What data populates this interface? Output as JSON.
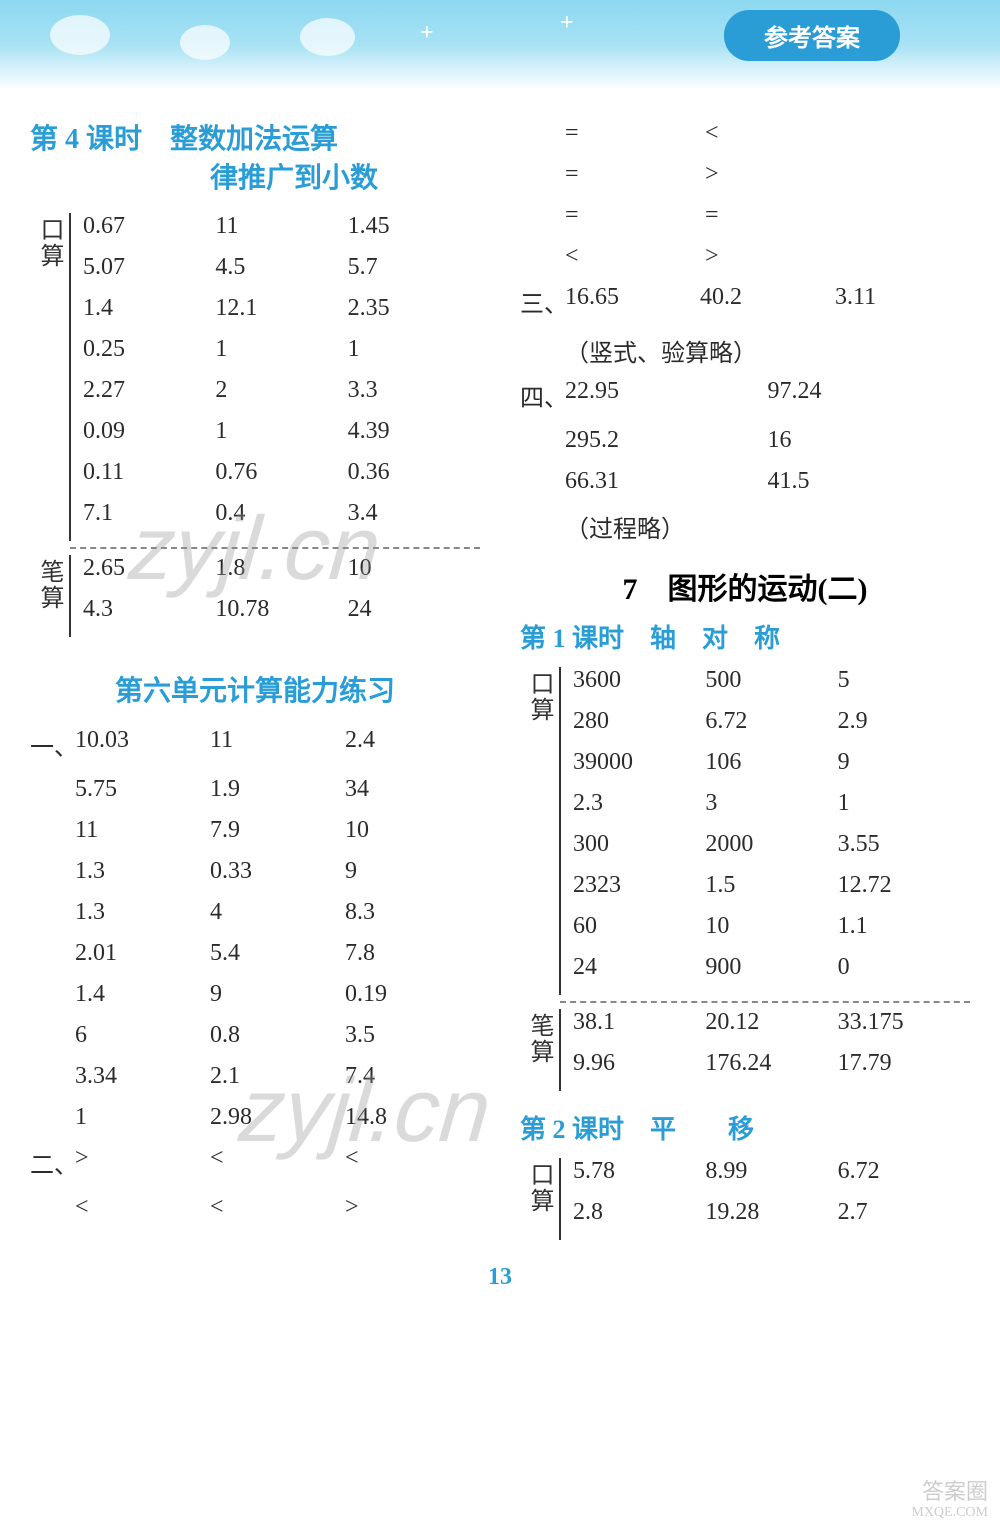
{
  "banner": {
    "badge": "参考答案"
  },
  "page_number": "13",
  "watermark_text": "zyjl.cn",
  "left": {
    "lesson4": {
      "title_line1": "第 4 课时　整数加法运算",
      "title_line2": "律推广到小数",
      "kousuan_label": "口算",
      "kousuan_rows": [
        [
          "0.67",
          "11",
          "1.45"
        ],
        [
          "5.07",
          "4.5",
          "5.7"
        ],
        [
          "1.4",
          "12.1",
          "2.35"
        ],
        [
          "0.25",
          "1",
          "1"
        ],
        [
          "2.27",
          "2",
          "3.3"
        ],
        [
          "0.09",
          "1",
          "4.39"
        ],
        [
          "0.11",
          "0.76",
          "0.36"
        ],
        [
          "7.1",
          "0.4",
          "3.4"
        ]
      ],
      "bisuan_label": "笔算",
      "bisuan_rows": [
        [
          "2.65",
          "1.8",
          "10"
        ],
        [
          "4.3",
          "10.78",
          "24"
        ]
      ]
    },
    "unit6": {
      "title": "第六单元计算能力练习",
      "sec1_label": "一、",
      "sec1_rows": [
        [
          "10.03",
          "11",
          "2.4"
        ],
        [
          "5.75",
          "1.9",
          "34"
        ],
        [
          "11",
          "7.9",
          "10"
        ],
        [
          "1.3",
          "0.33",
          "9"
        ],
        [
          "1.3",
          "4",
          "8.3"
        ],
        [
          "2.01",
          "5.4",
          "7.8"
        ],
        [
          "1.4",
          "9",
          "0.19"
        ],
        [
          "6",
          "0.8",
          "3.5"
        ],
        [
          "3.34",
          "2.1",
          "7.4"
        ],
        [
          "1",
          "2.98",
          "14.8"
        ]
      ],
      "sec2_label": "二、",
      "sec2_rows": [
        [
          ">",
          "<",
          "<"
        ],
        [
          "<",
          "<",
          ">"
        ]
      ]
    }
  },
  "right": {
    "continued_symbols": [
      [
        "=",
        "<"
      ],
      [
        "=",
        ">"
      ],
      [
        "=",
        "="
      ],
      [
        "<",
        ">"
      ]
    ],
    "sec3": {
      "label": "三、",
      "row": [
        "16.65",
        "40.2",
        "3.11"
      ],
      "note": "（竖式、验算略）"
    },
    "sec4": {
      "label": "四、",
      "rows": [
        [
          "22.95",
          "97.24"
        ],
        [
          "295.2",
          "16"
        ],
        [
          "66.31",
          "41.5"
        ]
      ],
      "note": "（过程略）"
    },
    "unit7_title": "7　图形的运动(二)",
    "lesson1": {
      "title": "第 1 课时　轴　对　称",
      "kousuan_label": "口算",
      "kousuan_rows": [
        [
          "3600",
          "500",
          "5"
        ],
        [
          "280",
          "6.72",
          "2.9"
        ],
        [
          "39000",
          "106",
          "9"
        ],
        [
          "2.3",
          "3",
          "1"
        ],
        [
          "300",
          "2000",
          "3.55"
        ],
        [
          "2323",
          "1.5",
          "12.72"
        ],
        [
          "60",
          "10",
          "1.1"
        ],
        [
          "24",
          "900",
          "0"
        ]
      ],
      "bisuan_label": "笔算",
      "bisuan_rows": [
        [
          "38.1",
          "20.12",
          "33.175"
        ],
        [
          "9.96",
          "176.24",
          "17.79"
        ]
      ]
    },
    "lesson2": {
      "title": "第 2 课时　平　　移",
      "kousuan_label": "口算",
      "kousuan_rows": [
        [
          "5.78",
          "8.99",
          "6.72"
        ],
        [
          "2.8",
          "19.28",
          "2.7"
        ]
      ]
    }
  },
  "footer_logo": {
    "line1": "答案圈",
    "line2": "MXQE.COM"
  }
}
